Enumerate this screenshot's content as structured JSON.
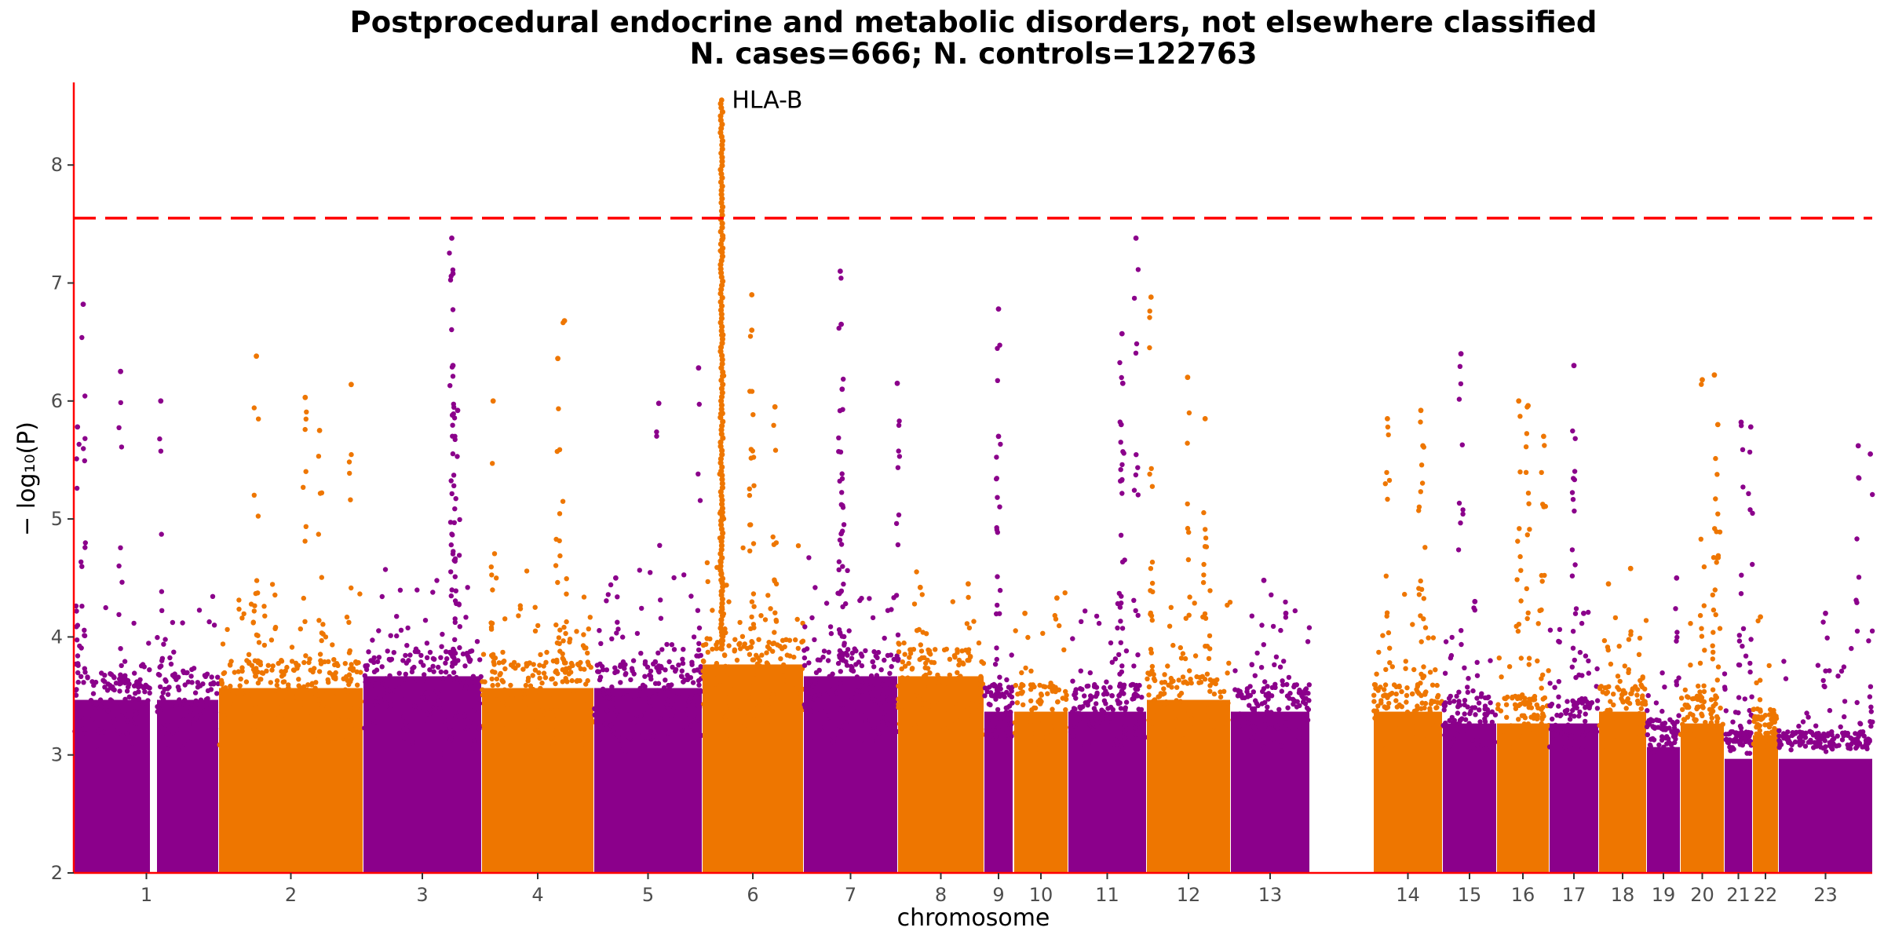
{
  "chart_data": {
    "type": "scatter",
    "subtype": "manhattan",
    "title": "Postprocedural endocrine and metabolic disorders, not elsewhere classified",
    "subtitle": "N. cases=666; N. controls=122763",
    "xlabel": "chromosome",
    "ylabel": "− log₁₀(P)",
    "ylim": [
      2,
      8.7
    ],
    "y_ticks": [
      "2",
      "3",
      "4",
      "5",
      "6",
      "7",
      "8"
    ],
    "grid": false,
    "legend": "none",
    "significance_threshold": 7.55,
    "colors": {
      "odd": "#8b008b",
      "even": "#ee7600",
      "axis": "#ff0000",
      "threshold": "#ff0000"
    },
    "annotations": [
      {
        "text": "HLA-B",
        "chromosome": "6",
        "y": 8.55
      }
    ],
    "chromosomes": [
      {
        "label": "1",
        "bulk_top": 3.6,
        "peaks": [
          {
            "pos": 0.06,
            "y": 6.82
          },
          {
            "pos": 0.32,
            "y": 6.25
          },
          {
            "pos": 0.6,
            "y": 6.0
          },
          {
            "pos": 0.02,
            "y": 5.78
          }
        ]
      },
      {
        "label": "2",
        "bulk_top": 3.7,
        "peaks": [
          {
            "pos": 0.26,
            "y": 6.38
          },
          {
            "pos": 0.6,
            "y": 6.03
          },
          {
            "pos": 0.92,
            "y": 6.14
          },
          {
            "pos": 0.7,
            "y": 5.75
          }
        ]
      },
      {
        "label": "3",
        "bulk_top": 3.8,
        "peaks": [
          {
            "pos": 0.75,
            "y": 7.38
          },
          {
            "pos": 0.76,
            "y": 7.08
          },
          {
            "pos": 0.76,
            "y": 6.3
          },
          {
            "pos": 0.8,
            "y": 5.92
          }
        ]
      },
      {
        "label": "4",
        "bulk_top": 3.7,
        "peaks": [
          {
            "pos": 0.74,
            "y": 6.68
          },
          {
            "pos": 0.68,
            "y": 6.36
          },
          {
            "pos": 0.1,
            "y": 6.0
          }
        ]
      },
      {
        "label": "5",
        "bulk_top": 3.7,
        "peaks": [
          {
            "pos": 0.6,
            "y": 5.98
          },
          {
            "pos": 0.97,
            "y": 6.28
          },
          {
            "pos": 0.2,
            "y": 4.5
          }
        ]
      },
      {
        "label": "6",
        "bulk_top": 3.9,
        "peaks": [
          {
            "pos": 0.19,
            "y": 8.55
          },
          {
            "pos": 0.49,
            "y": 6.9
          },
          {
            "pos": 0.49,
            "y": 6.6
          },
          {
            "pos": 0.72,
            "y": 5.95
          }
        ]
      },
      {
        "label": "7",
        "bulk_top": 3.8,
        "peaks": [
          {
            "pos": 0.39,
            "y": 7.1
          },
          {
            "pos": 0.4,
            "y": 6.65
          },
          {
            "pos": 0.41,
            "y": 6.1
          },
          {
            "pos": 1.0,
            "y": 6.15
          }
        ]
      },
      {
        "label": "8",
        "bulk_top": 3.8,
        "peaks": [
          {
            "pos": 0.82,
            "y": 4.45
          },
          {
            "pos": 0.26,
            "y": 4.42
          }
        ]
      },
      {
        "label": "9",
        "bulk_top": 3.5,
        "peaks": [
          {
            "pos": 0.5,
            "y": 6.78
          },
          {
            "pos": 0.5,
            "y": 5.7
          }
        ]
      },
      {
        "label": "10",
        "bulk_top": 3.5,
        "peaks": [
          {
            "pos": 0.8,
            "y": 4.33
          },
          {
            "pos": 0.2,
            "y": 4.2
          }
        ]
      },
      {
        "label": "11",
        "bulk_top": 3.5,
        "peaks": [
          {
            "pos": 0.87,
            "y": 7.38
          },
          {
            "pos": 0.69,
            "y": 6.57
          },
          {
            "pos": 0.7,
            "y": 6.15
          },
          {
            "pos": 0.68,
            "y": 5.8
          }
        ]
      },
      {
        "label": "12",
        "bulk_top": 3.6,
        "peaks": [
          {
            "pos": 0.05,
            "y": 6.88
          },
          {
            "pos": 0.49,
            "y": 6.2
          },
          {
            "pos": 0.7,
            "y": 5.85
          }
        ]
      },
      {
        "label": "13",
        "bulk_top": 3.5,
        "peaks": [
          {
            "pos": 0.42,
            "y": 4.48
          },
          {
            "pos": 0.7,
            "y": 4.2
          }
        ]
      },
      {
        "label": "14",
        "bulk_top": 3.5,
        "peaks": [
          {
            "pos": 0.69,
            "y": 5.92
          },
          {
            "pos": 0.2,
            "y": 5.85
          },
          {
            "pos": 0.72,
            "y": 5.62
          }
        ]
      },
      {
        "label": "15",
        "bulk_top": 3.4,
        "peaks": [
          {
            "pos": 0.34,
            "y": 6.4
          },
          {
            "pos": 0.6,
            "y": 4.3
          }
        ]
      },
      {
        "label": "16",
        "bulk_top": 3.4,
        "peaks": [
          {
            "pos": 0.42,
            "y": 6.0
          },
          {
            "pos": 0.6,
            "y": 5.96
          },
          {
            "pos": 0.9,
            "y": 5.7
          }
        ]
      },
      {
        "label": "17",
        "bulk_top": 3.4,
        "peaks": [
          {
            "pos": 0.5,
            "y": 6.3
          },
          {
            "pos": 0.7,
            "y": 4.2
          }
        ]
      },
      {
        "label": "18",
        "bulk_top": 3.5,
        "peaks": [
          {
            "pos": 0.67,
            "y": 4.58
          },
          {
            "pos": 0.2,
            "y": 4.45
          }
        ]
      },
      {
        "label": "19",
        "bulk_top": 3.2,
        "peaks": [
          {
            "pos": 0.9,
            "y": 4.5
          }
        ]
      },
      {
        "label": "20",
        "bulk_top": 3.4,
        "peaks": [
          {
            "pos": 0.5,
            "y": 6.18
          },
          {
            "pos": 0.78,
            "y": 6.22
          },
          {
            "pos": 0.86,
            "y": 5.8
          }
        ]
      },
      {
        "label": "21",
        "bulk_top": 3.1,
        "peaks": [
          {
            "pos": 0.6,
            "y": 5.82
          },
          {
            "pos": 0.95,
            "y": 5.78
          }
        ]
      },
      {
        "label": "22",
        "bulk_top": 3.3,
        "peaks": [
          {
            "pos": 0.3,
            "y": 4.17
          }
        ]
      },
      {
        "label": "23",
        "bulk_top": 3.1,
        "peaks": [
          {
            "pos": 0.85,
            "y": 5.62
          },
          {
            "pos": 0.98,
            "y": 5.55
          },
          {
            "pos": 0.5,
            "y": 4.2
          }
        ]
      }
    ]
  }
}
